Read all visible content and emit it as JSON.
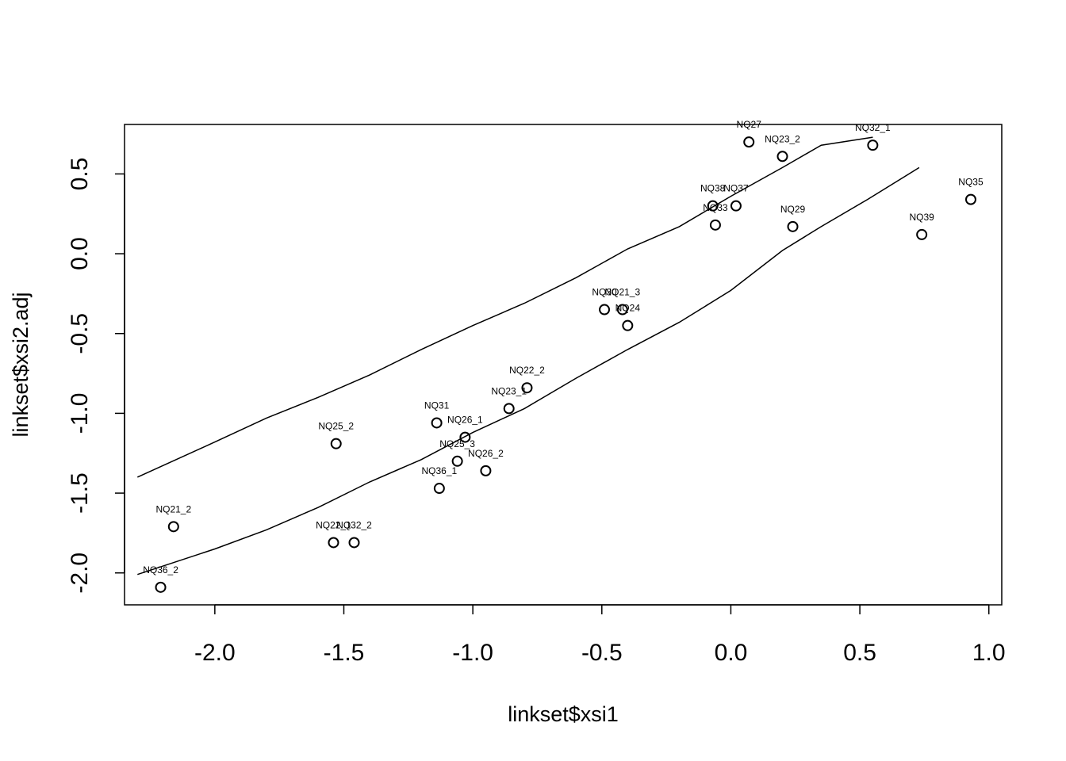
{
  "chart_data": {
    "type": "scatter",
    "xlabel": "linkset$xsi1",
    "ylabel": "linkset$xsi2.adj",
    "xlim": [
      -2.35,
      1.05
    ],
    "ylim": [
      -2.2,
      0.81
    ],
    "x_ticks": [
      -2.0,
      -1.5,
      -1.0,
      -0.5,
      0.0,
      0.5,
      1.0
    ],
    "x_tick_labels": [
      "-2.0",
      "-1.5",
      "-1.0",
      "-0.5",
      "0.0",
      "0.5",
      "1.0"
    ],
    "y_ticks": [
      -2.0,
      -1.5,
      -1.0,
      -0.5,
      0.0,
      0.5
    ],
    "y_tick_labels": [
      "-2.0",
      "-1.5",
      "-1.0",
      "-0.5",
      "0.0",
      "0.5"
    ],
    "grid": false,
    "points": [
      {
        "label": "NQ27",
        "x": 0.07,
        "y": 0.7
      },
      {
        "label": "NQ23_2",
        "x": 0.2,
        "y": 0.61
      },
      {
        "label": "NQ32_1",
        "x": 0.55,
        "y": 0.68
      },
      {
        "label": "NQ35",
        "x": 0.93,
        "y": 0.34
      },
      {
        "label": "NQ38",
        "x": -0.07,
        "y": 0.3
      },
      {
        "label": "NQ37",
        "x": 0.02,
        "y": 0.3
      },
      {
        "label": "NQ33",
        "x": -0.06,
        "y": 0.18
      },
      {
        "label": "NQ29",
        "x": 0.24,
        "y": 0.17
      },
      {
        "label": "NQ39",
        "x": 0.74,
        "y": 0.12
      },
      {
        "label": "NQ30",
        "x": -0.49,
        "y": -0.35
      },
      {
        "label": "NQ21_3",
        "x": -0.42,
        "y": -0.35
      },
      {
        "label": "NQ24",
        "x": -0.4,
        "y": -0.45
      },
      {
        "label": "NQ22_2",
        "x": -0.79,
        "y": -0.84
      },
      {
        "label": "NQ23_1",
        "x": -0.86,
        "y": -0.97
      },
      {
        "label": "NQ31",
        "x": -1.14,
        "y": -1.06
      },
      {
        "label": "NQ26_1",
        "x": -1.03,
        "y": -1.15
      },
      {
        "label": "NQ25_2",
        "x": -1.53,
        "y": -1.19
      },
      {
        "label": "NQ25_3",
        "x": -1.06,
        "y": -1.3
      },
      {
        "label": "NQ26_2",
        "x": -0.95,
        "y": -1.36
      },
      {
        "label": "NQ36_1",
        "x": -1.13,
        "y": -1.47
      },
      {
        "label": "NQ21_2",
        "x": -2.16,
        "y": -1.71
      },
      {
        "label": "NQ22_1",
        "x": -1.54,
        "y": -1.81
      },
      {
        "label": "NQ32_2",
        "x": -1.46,
        "y": -1.81
      },
      {
        "label": "NQ36_2",
        "x": -2.21,
        "y": -2.09
      }
    ],
    "lines": [
      {
        "points": [
          [
            -2.3,
            -2.01
          ],
          [
            -2.0,
            -1.85
          ],
          [
            -1.8,
            -1.73
          ],
          [
            -1.6,
            -1.59
          ],
          [
            -1.4,
            -1.43
          ],
          [
            -1.2,
            -1.29
          ],
          [
            -1.0,
            -1.12
          ],
          [
            -0.8,
            -0.97
          ],
          [
            -0.6,
            -0.78
          ],
          [
            -0.4,
            -0.6
          ],
          [
            -0.2,
            -0.43
          ],
          [
            0.0,
            -0.23
          ],
          [
            0.2,
            0.02
          ],
          [
            0.35,
            0.17
          ],
          [
            0.53,
            0.34
          ],
          [
            0.73,
            0.54
          ]
        ]
      },
      {
        "points": [
          [
            -2.3,
            -1.4
          ],
          [
            -2.0,
            -1.18
          ],
          [
            -1.8,
            -1.03
          ],
          [
            -1.6,
            -0.9
          ],
          [
            -1.4,
            -0.76
          ],
          [
            -1.2,
            -0.6
          ],
          [
            -1.0,
            -0.45
          ],
          [
            -0.8,
            -0.31
          ],
          [
            -0.6,
            -0.15
          ],
          [
            -0.4,
            0.03
          ],
          [
            -0.2,
            0.17
          ],
          [
            0.0,
            0.36
          ],
          [
            0.2,
            0.54
          ],
          [
            0.35,
            0.68
          ],
          [
            0.55,
            0.73
          ]
        ]
      }
    ]
  }
}
